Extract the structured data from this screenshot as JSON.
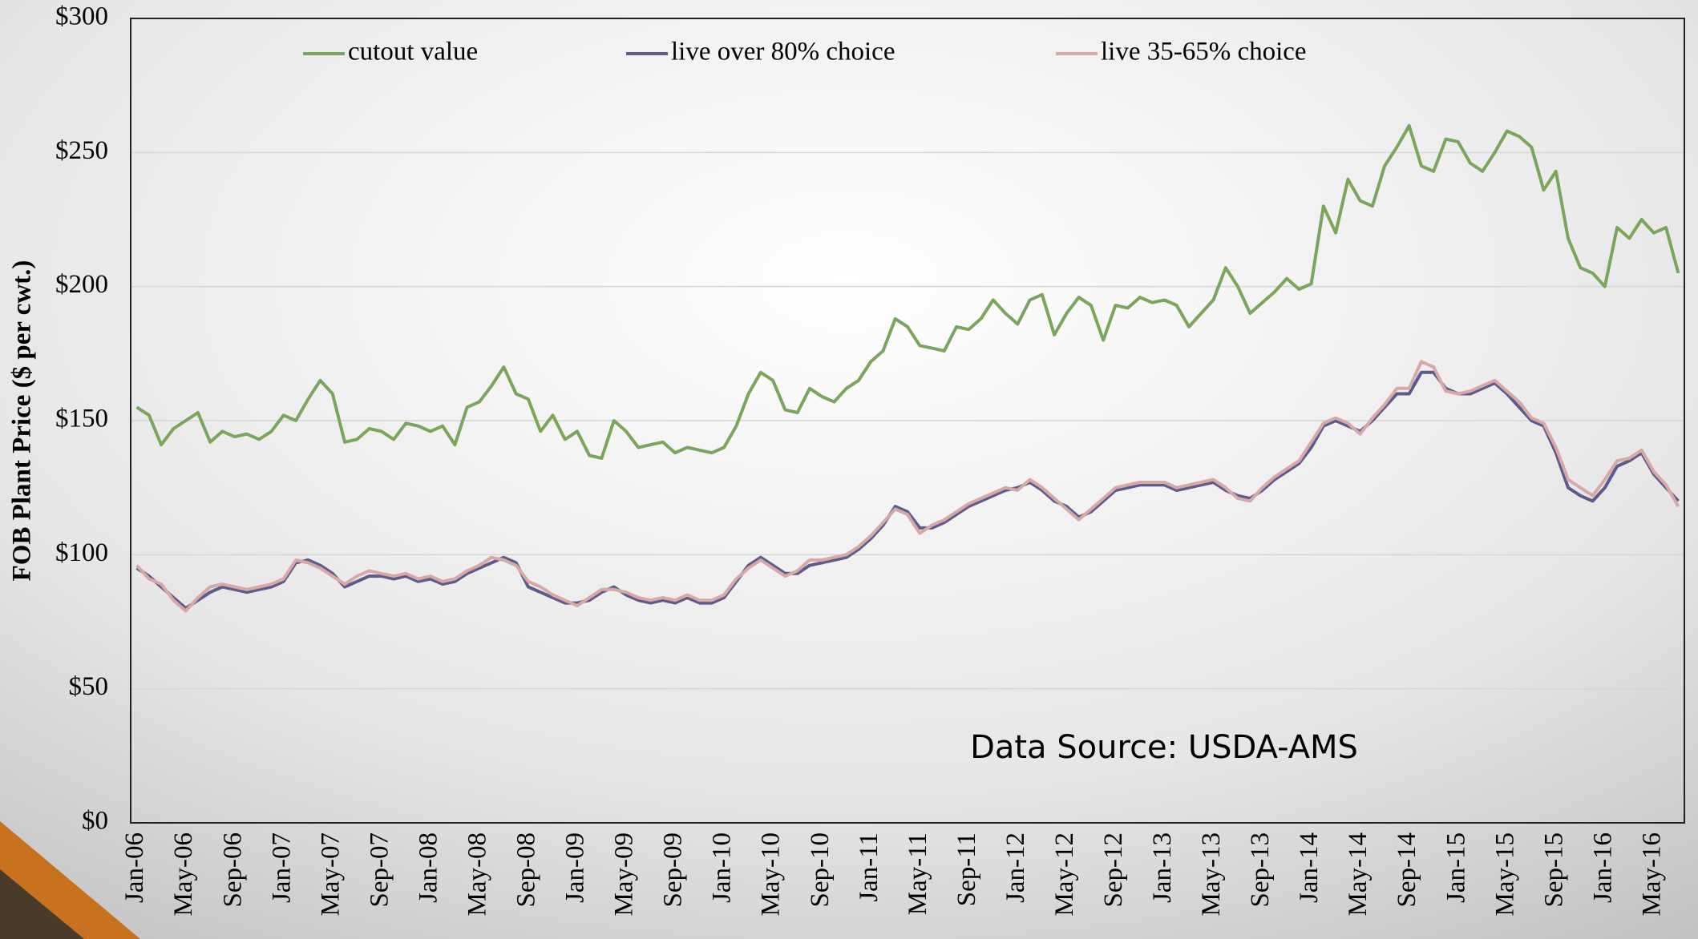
{
  "chart_data": {
    "type": "line",
    "y_label": "FOB Plant Price ($ per cwt.)",
    "annotation": "Data Source: USDA-AMS",
    "legend": "top",
    "grid": true,
    "ylim": [
      0,
      300
    ],
    "yticks": [
      {
        "value": 0,
        "label": "$0"
      },
      {
        "value": 50,
        "label": "$50"
      },
      {
        "value": 100,
        "label": "$100"
      },
      {
        "value": 150,
        "label": "$150"
      },
      {
        "value": 200,
        "label": "$200"
      },
      {
        "value": 250,
        "label": "$250"
      },
      {
        "value": 300,
        "label": "$300"
      }
    ],
    "categories": [
      "Jan-06",
      null,
      null,
      null,
      "May-06",
      null,
      null,
      null,
      "Sep-06",
      null,
      null,
      null,
      "Jan-07",
      null,
      null,
      null,
      "May-07",
      null,
      null,
      null,
      "Sep-07",
      null,
      null,
      null,
      "Jan-08",
      null,
      null,
      null,
      "May-08",
      null,
      null,
      null,
      "Sep-08",
      null,
      null,
      null,
      "Jan-09",
      null,
      null,
      null,
      "May-09",
      null,
      null,
      null,
      "Sep-09",
      null,
      null,
      null,
      "Jan-10",
      null,
      null,
      null,
      "May-10",
      null,
      null,
      null,
      "Sep-10",
      null,
      null,
      null,
      "Jan-11",
      null,
      null,
      null,
      "May-11",
      null,
      null,
      null,
      "Sep-11",
      null,
      null,
      null,
      "Jan-12",
      null,
      null,
      null,
      "May-12",
      null,
      null,
      null,
      "Sep-12",
      null,
      null,
      null,
      "Jan-13",
      null,
      null,
      null,
      "May-13",
      null,
      null,
      null,
      "Sep-13",
      null,
      null,
      null,
      "Jan-14",
      null,
      null,
      null,
      "May-14",
      null,
      null,
      null,
      "Sep-14",
      null,
      null,
      null,
      "Jan-15",
      null,
      null,
      null,
      "May-15",
      null,
      null,
      null,
      "Sep-15",
      null,
      null,
      null,
      "Jan-16",
      null,
      null,
      null,
      "May-16",
      null,
      null
    ],
    "series": [
      {
        "name": "cutout value",
        "color": "#7aa65c",
        "values": [
          155,
          152,
          141,
          147,
          150,
          153,
          142,
          146,
          144,
          145,
          143,
          146,
          152,
          150,
          158,
          165,
          160,
          142,
          143,
          147,
          146,
          143,
          149,
          148,
          146,
          148,
          141,
          155,
          157,
          163,
          170,
          160,
          158,
          146,
          152,
          143,
          146,
          137,
          136,
          150,
          146,
          140,
          141,
          142,
          138,
          140,
          139,
          138,
          140,
          148,
          160,
          168,
          165,
          154,
          153,
          162,
          159,
          157,
          162,
          165,
          172,
          176,
          188,
          185,
          178,
          177,
          176,
          185,
          184,
          188,
          195,
          190,
          186,
          195,
          197,
          182,
          190,
          196,
          193,
          180,
          193,
          192,
          196,
          194,
          195,
          193,
          185,
          190,
          195,
          207,
          200,
          190,
          194,
          198,
          203,
          199,
          201,
          230,
          220,
          240,
          232,
          230,
          245,
          252,
          260,
          245,
          243,
          255,
          254,
          246,
          243,
          250,
          258,
          256,
          252,
          236,
          243,
          218,
          207,
          205,
          200,
          222,
          218,
          225,
          220,
          222,
          205
        ]
      },
      {
        "name": "live over 80% choice",
        "color": "#5c5a8e",
        "values": [
          95,
          92,
          88,
          84,
          80,
          83,
          86,
          88,
          87,
          86,
          87,
          88,
          90,
          97,
          98,
          96,
          93,
          88,
          90,
          92,
          92,
          91,
          92,
          90,
          91,
          89,
          90,
          93,
          95,
          97,
          99,
          97,
          88,
          86,
          84,
          82,
          82,
          83,
          86,
          88,
          85,
          83,
          82,
          83,
          82,
          84,
          82,
          82,
          84,
          90,
          96,
          99,
          96,
          93,
          93,
          96,
          97,
          98,
          99,
          102,
          106,
          111,
          118,
          116,
          110,
          110,
          112,
          115,
          118,
          120,
          122,
          124,
          125,
          127,
          124,
          120,
          118,
          114,
          116,
          120,
          124,
          125,
          126,
          126,
          126,
          124,
          125,
          126,
          127,
          124,
          122,
          121,
          124,
          128,
          131,
          134,
          140,
          148,
          150,
          148,
          146,
          150,
          155,
          160,
          160,
          168,
          168,
          162,
          160,
          160,
          162,
          164,
          160,
          155,
          150,
          148,
          138,
          125,
          122,
          120,
          125,
          133,
          135,
          138,
          130,
          125,
          120
        ]
      },
      {
        "name": "live 35-65% choice",
        "color": "#d8a8a8",
        "values": [
          96,
          91,
          89,
          83,
          79,
          84,
          88,
          89,
          88,
          87,
          88,
          89,
          91,
          98,
          97,
          95,
          92,
          89,
          92,
          94,
          93,
          92,
          93,
          91,
          92,
          90,
          91,
          94,
          96,
          99,
          98,
          96,
          90,
          88,
          85,
          83,
          81,
          84,
          87,
          87,
          86,
          84,
          83,
          84,
          83,
          85,
          83,
          83,
          85,
          91,
          95,
          98,
          95,
          92,
          94,
          98,
          98,
          99,
          100,
          103,
          107,
          112,
          117,
          115,
          108,
          111,
          113,
          116,
          119,
          121,
          123,
          125,
          124,
          128,
          125,
          121,
          117,
          113,
          117,
          121,
          125,
          126,
          127,
          127,
          127,
          125,
          126,
          127,
          128,
          125,
          121,
          120,
          125,
          129,
          132,
          135,
          142,
          149,
          151,
          149,
          145,
          151,
          156,
          162,
          162,
          172,
          170,
          161,
          160,
          161,
          163,
          165,
          161,
          157,
          151,
          149,
          140,
          128,
          125,
          122,
          128,
          135,
          136,
          139,
          131,
          126,
          118
        ]
      }
    ]
  }
}
